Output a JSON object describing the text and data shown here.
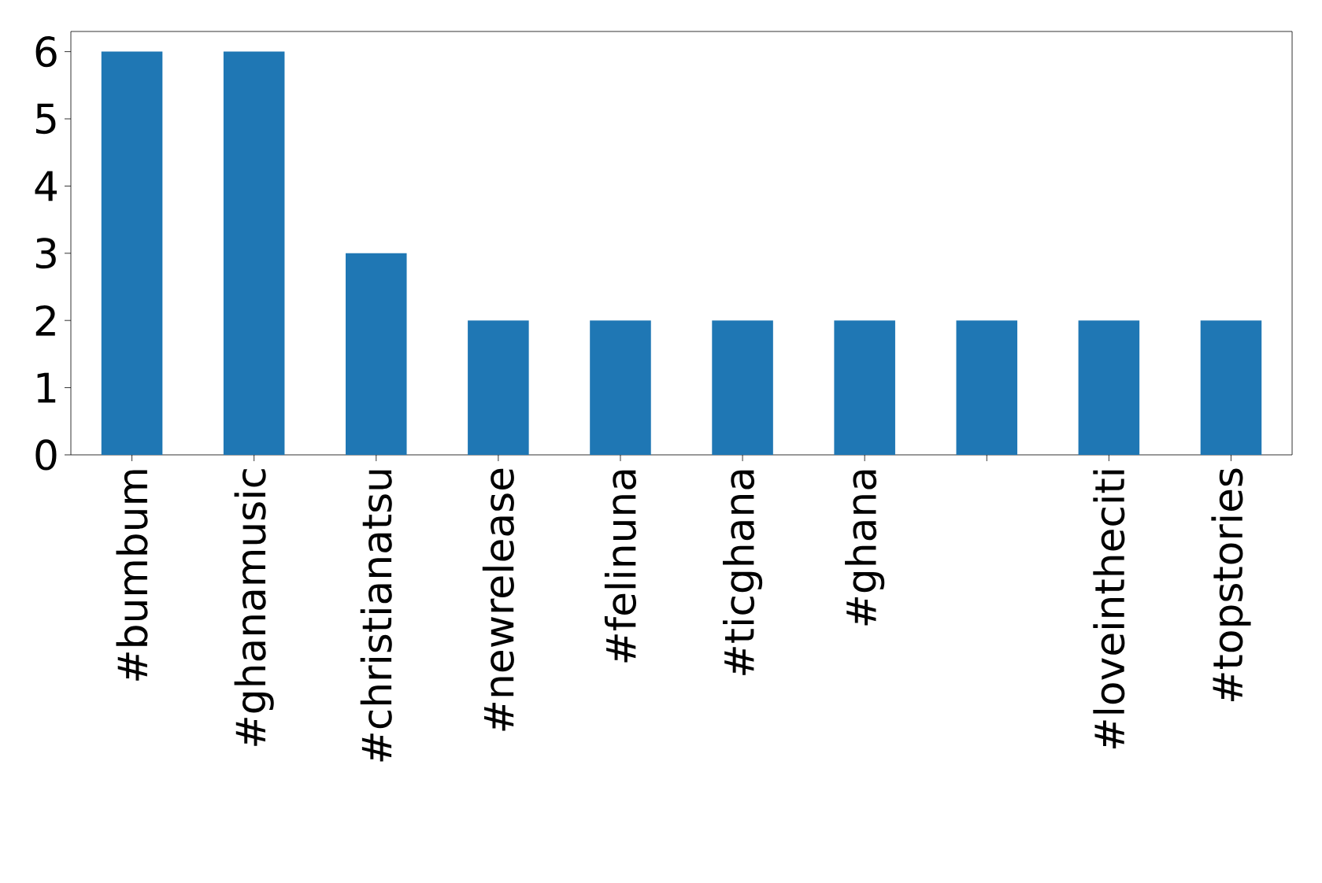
{
  "chart_data": {
    "type": "bar",
    "categories": [
      "#bumbum",
      "#ghanamusic",
      "#christianatsu",
      "#newrelease",
      "#felinuna",
      "#ticghana",
      "#ghana",
      null,
      "#loveintheciti",
      "#topstories"
    ],
    "values": [
      6,
      6,
      3,
      2,
      2,
      2,
      2,
      2,
      2,
      2
    ],
    "color": "#1f77b4",
    "ylim": [
      0,
      6.3
    ],
    "yticks": [
      0,
      1,
      2,
      3,
      4,
      5,
      6
    ],
    "grid": false
  }
}
